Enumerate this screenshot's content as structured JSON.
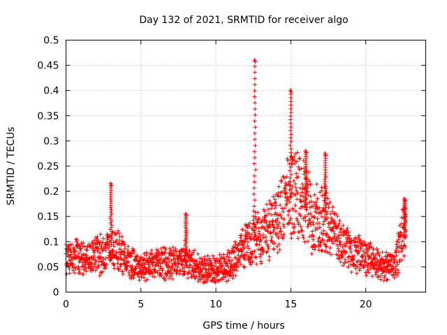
{
  "chart_data": {
    "type": "scatter",
    "title": "Day 132 of 2021, SRMTID for receiver algo",
    "xlabel": "GPS time / hours",
    "ylabel": "SRMTID / TECUs",
    "xlim": [
      0,
      24
    ],
    "ylim": [
      0,
      0.5
    ],
    "xticks": [
      0,
      5,
      10,
      15,
      20
    ],
    "xtick_labels": [
      "0",
      "5",
      "10",
      "15",
      "20"
    ],
    "yticks": [
      0,
      0.05,
      0.1,
      0.15,
      0.2,
      0.25,
      0.3,
      0.35,
      0.4,
      0.45,
      0.5
    ],
    "ytick_labels": [
      "0",
      "0.05",
      "0.1",
      "0.15",
      "0.2",
      "0.25",
      "0.3",
      "0.35",
      "0.4",
      "0.45",
      "0.5"
    ],
    "grid": true,
    "marker": "+",
    "series": [
      {
        "name": "SRMTID",
        "color": "#ff0000",
        "profile_description_keypoints_x": [
          0,
          0.5,
          1,
          2,
          2.5,
          3,
          3.5,
          4,
          5,
          6,
          7,
          8,
          9,
          10,
          11,
          12,
          12.5,
          13,
          14,
          14.5,
          15,
          15.5,
          16,
          16.5,
          17,
          17.3,
          18,
          19,
          20,
          21,
          22,
          22.5
        ],
        "profile_description_keypoints_y": [
          0.075,
          0.07,
          0.07,
          0.07,
          0.075,
          0.09,
          0.08,
          0.065,
          0.05,
          0.055,
          0.06,
          0.06,
          0.045,
          0.045,
          0.055,
          0.09,
          0.11,
          0.11,
          0.14,
          0.17,
          0.19,
          0.2,
          0.17,
          0.14,
          0.15,
          0.14,
          0.11,
          0.08,
          0.07,
          0.05,
          0.06,
          0.12
        ],
        "spikes": [
          {
            "x": 3.0,
            "peak": 0.215
          },
          {
            "x": 8.0,
            "peak": 0.155
          },
          {
            "x": 12.6,
            "peak": 0.46
          },
          {
            "x": 15.0,
            "peak": 0.4
          },
          {
            "x": 16.0,
            "peak": 0.28
          },
          {
            "x": 17.3,
            "peak": 0.275
          },
          {
            "x": 22.6,
            "peak": 0.185
          }
        ]
      }
    ]
  }
}
